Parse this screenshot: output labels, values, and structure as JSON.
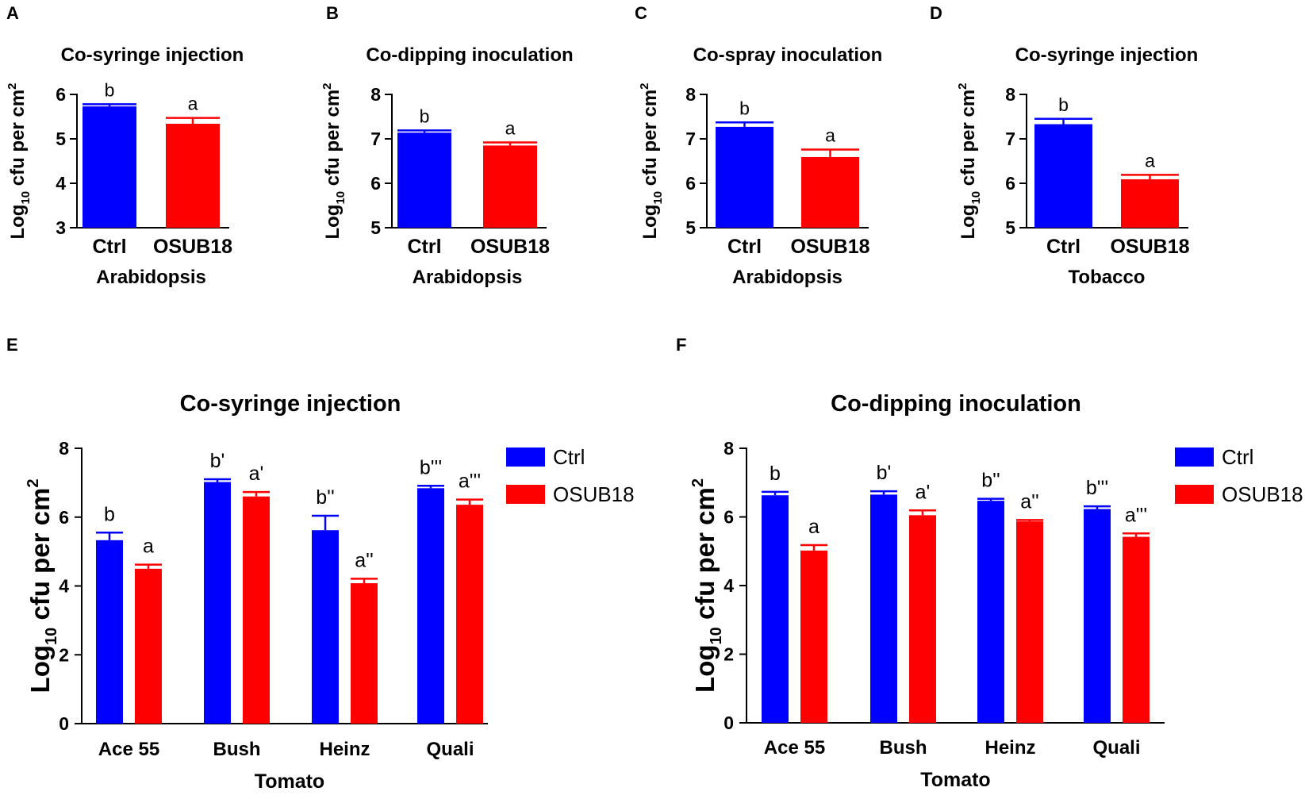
{
  "chart_data": [
    {
      "panel": "A",
      "type": "bar",
      "title": "Co-syringe injection",
      "categories": [
        "Ctrl",
        "OSUB18"
      ],
      "values": [
        5.73,
        5.34
      ],
      "errors": [
        0.05,
        0.13
      ],
      "significance": [
        "b",
        "a"
      ],
      "colors": [
        "#0000ff",
        "#ff0000"
      ],
      "xlabel": "Arabidopsis",
      "ylabel_main": "Log",
      "ylabel_sub": "10",
      "ylabel_rest": " cfu per cm",
      "ylabel_sup": "2",
      "ylim": [
        3,
        6
      ],
      "yticks": [
        "3",
        "4",
        "5",
        "6"
      ]
    },
    {
      "panel": "B",
      "type": "bar",
      "title": "Co-dipping inoculation",
      "categories": [
        "Ctrl",
        "OSUB18"
      ],
      "values": [
        7.14,
        6.85
      ],
      "errors": [
        0.05,
        0.07
      ],
      "significance": [
        "b",
        "a"
      ],
      "colors": [
        "#0000ff",
        "#ff0000"
      ],
      "xlabel": "Arabidopsis",
      "ylabel_main": "Log",
      "ylabel_sub": "10",
      "ylabel_rest": " cfu per cm",
      "ylabel_sup": "2",
      "ylim": [
        5,
        8
      ],
      "yticks": [
        "5",
        "6",
        "7",
        "8"
      ]
    },
    {
      "panel": "C",
      "type": "bar",
      "title": "Co-spray inoculation",
      "categories": [
        "Ctrl",
        "OSUB18"
      ],
      "values": [
        7.27,
        6.59
      ],
      "errors": [
        0.1,
        0.17
      ],
      "significance": [
        "b",
        "a"
      ],
      "colors": [
        "#0000ff",
        "#ff0000"
      ],
      "xlabel": "Arabidopsis",
      "ylabel_main": "Log",
      "ylabel_sub": "10",
      "ylabel_rest": " cfu per cm",
      "ylabel_sup": "2",
      "ylim": [
        5,
        8
      ],
      "yticks": [
        "5",
        "6",
        "7",
        "8"
      ]
    },
    {
      "panel": "D",
      "type": "bar",
      "title": "Co-syringe injection",
      "categories": [
        "Ctrl",
        "OSUB18"
      ],
      "values": [
        7.33,
        6.09
      ],
      "errors": [
        0.12,
        0.1
      ],
      "significance": [
        "b",
        "a"
      ],
      "colors": [
        "#0000ff",
        "#ff0000"
      ],
      "xlabel": "Tobacco",
      "ylabel_main": "Log",
      "ylabel_sub": "10",
      "ylabel_rest": " cfu per cm",
      "ylabel_sup": "2",
      "ylim": [
        5,
        8
      ],
      "yticks": [
        "5",
        "6",
        "7",
        "8"
      ]
    },
    {
      "panel": "E",
      "type": "bar",
      "title": "Co-syringe injection",
      "categories": [
        "Ace 55",
        "Bush",
        "Heinz",
        "Quali"
      ],
      "series": [
        {
          "name": "Ctrl",
          "color": "#0000ff",
          "values": [
            5.33,
            7.02,
            5.62,
            6.84
          ],
          "errors": [
            0.22,
            0.08,
            0.42,
            0.07
          ],
          "significance": [
            "b",
            "b'",
            "b''",
            "b'''"
          ]
        },
        {
          "name": "OSUB18",
          "color": "#ff0000",
          "values": [
            4.5,
            6.6,
            4.08,
            6.36
          ],
          "errors": [
            0.12,
            0.13,
            0.13,
            0.15
          ],
          "significance": [
            "a",
            "a'",
            "a''",
            "a'''"
          ]
        }
      ],
      "xlabel": "Tomato",
      "ylabel_main": "Log",
      "ylabel_sub": "10",
      "ylabel_rest": " cfu per cm",
      "ylabel_sup": "2",
      "ylim": [
        0,
        8
      ],
      "yticks": [
        "0",
        "2",
        "4",
        "6",
        "8"
      ],
      "legend": "right"
    },
    {
      "panel": "F",
      "type": "bar",
      "title": "Co-dipping inoculation",
      "categories": [
        "Ace 55",
        "Bush",
        "Heinz",
        "Quali"
      ],
      "series": [
        {
          "name": "Ctrl",
          "color": "#0000ff",
          "values": [
            6.63,
            6.65,
            6.47,
            6.23
          ],
          "errors": [
            0.1,
            0.1,
            0.06,
            0.08
          ],
          "significance": [
            "b",
            "b'",
            "b''",
            "b'''"
          ]
        },
        {
          "name": "OSUB18",
          "color": "#ff0000",
          "values": [
            5.02,
            6.05,
            5.87,
            5.42
          ],
          "errors": [
            0.16,
            0.14,
            0.04,
            0.1
          ],
          "significance": [
            "a",
            "a'",
            "a''",
            "a'''"
          ]
        }
      ],
      "xlabel": "Tomato",
      "ylabel_main": "Log",
      "ylabel_sub": "10",
      "ylabel_rest": " cfu per cm",
      "ylabel_sup": "2",
      "ylim": [
        0,
        8
      ],
      "yticks": [
        "0",
        "2",
        "4",
        "6",
        "8"
      ],
      "legend": "right"
    }
  ]
}
